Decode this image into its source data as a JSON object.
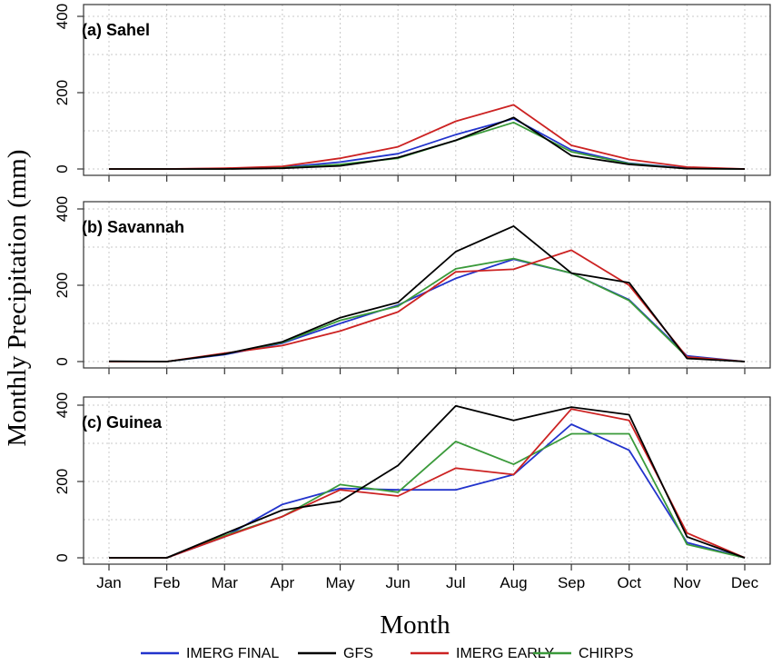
{
  "chart_data": {
    "type": "line",
    "xlabel": "Month",
    "ylabel": "Monthly Precipitation (mm)",
    "categories": [
      "Jan",
      "Feb",
      "Mar",
      "Apr",
      "May",
      "Jun",
      "Jul",
      "Aug",
      "Sep",
      "Oct",
      "Nov",
      "Dec"
    ],
    "grid": true,
    "legend_position": "bottom",
    "legend": [
      {
        "name": "IMERG FINAL",
        "color": "#2233cc"
      },
      {
        "name": "GFS",
        "color": "#000000"
      },
      {
        "name": "IMERG EARLY",
        "color": "#cc2222"
      },
      {
        "name": "CHIRPS",
        "color": "#3a9a3a"
      }
    ],
    "panels": [
      {
        "label": "(a) Sahel",
        "ylim": [
          0,
          400
        ],
        "yticks": [
          0,
          200,
          400
        ],
        "series": [
          {
            "name": "IMERG FINAL",
            "color": "#2233cc",
            "values": [
              0,
              0,
              1,
              4,
              18,
              40,
              90,
              132,
              50,
              15,
              2,
              0
            ]
          },
          {
            "name": "GFS",
            "color": "#000000",
            "values": [
              0,
              0,
              0,
              2,
              8,
              30,
              75,
              135,
              35,
              12,
              1,
              0
            ]
          },
          {
            "name": "IMERG EARLY",
            "color": "#cc2222",
            "values": [
              0,
              0,
              2,
              7,
              28,
              58,
              125,
              168,
              62,
              25,
              5,
              0
            ]
          },
          {
            "name": "CHIRPS",
            "color": "#3a9a3a",
            "values": [
              0,
              0,
              0,
              3,
              12,
              28,
              75,
              122,
              45,
              14,
              1,
              0
            ]
          }
        ]
      },
      {
        "label": "(b) Savannah",
        "ylim": [
          0,
          400
        ],
        "yticks": [
          0,
          200,
          400
        ],
        "series": [
          {
            "name": "IMERG FINAL",
            "color": "#2233cc",
            "values": [
              0,
              0,
              18,
              48,
              100,
              148,
              218,
              268,
              232,
              162,
              15,
              0
            ]
          },
          {
            "name": "GFS",
            "color": "#000000",
            "values": [
              1,
              0,
              20,
              52,
              115,
              155,
              288,
              355,
              232,
              207,
              8,
              0
            ]
          },
          {
            "name": "IMERG EARLY",
            "color": "#cc2222",
            "values": [
              0,
              0,
              22,
              42,
              80,
              130,
              235,
              242,
              292,
              200,
              12,
              0
            ]
          },
          {
            "name": "CHIRPS",
            "color": "#3a9a3a",
            "values": [
              0,
              0,
              20,
              50,
              108,
              145,
              243,
              270,
              232,
              160,
              12,
              0
            ]
          }
        ]
      },
      {
        "label": "(c) Guinea",
        "ylim": [
          0,
          400
        ],
        "yticks": [
          0,
          200,
          400
        ],
        "series": [
          {
            "name": "IMERG FINAL",
            "color": "#2233cc",
            "values": [
              0,
              0,
              55,
              140,
              182,
              178,
              178,
              218,
              350,
              282,
              40,
              0
            ]
          },
          {
            "name": "GFS",
            "color": "#000000",
            "values": [
              0,
              0,
              63,
              125,
              148,
              242,
              398,
              360,
              395,
              375,
              55,
              0
            ]
          },
          {
            "name": "IMERG EARLY",
            "color": "#cc2222",
            "values": [
              0,
              0,
              55,
              108,
              178,
              162,
              235,
              218,
              390,
              360,
              65,
              0
            ]
          },
          {
            "name": "CHIRPS",
            "color": "#3a9a3a",
            "values": [
              0,
              0,
              58,
              108,
              192,
              172,
              305,
              245,
              325,
              325,
              35,
              0
            ]
          }
        ]
      }
    ]
  }
}
